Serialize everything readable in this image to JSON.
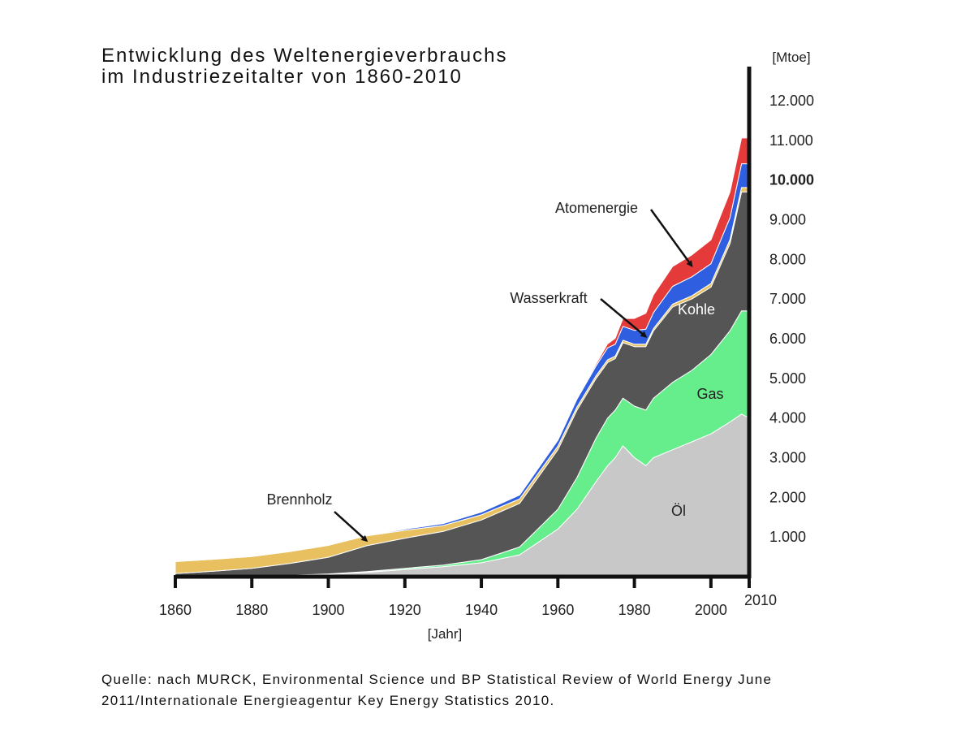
{
  "title": {
    "line1": "Entwicklung des Weltenergieverbrauchs",
    "line2": "im Industriezeitalter von 1860-2010"
  },
  "source": {
    "line1": "Quelle: nach MURCK, Environmental Science und BP Statistical Review of World Energy June",
    "line2": "2011/Internationale Energieagentur Key Energy Statistics 2010."
  },
  "chart_data": {
    "type": "area",
    "stacked": true,
    "xlabel": "[Jahr]",
    "ylabel": "[Mtoe]",
    "xlim": [
      1860,
      2010
    ],
    "ylim": [
      0,
      12900
    ],
    "x_ticks": [
      "1860",
      "1880",
      "1900",
      "1920",
      "1940",
      "1960",
      "1980",
      "2000",
      "2010"
    ],
    "y_ticks": [
      "1.000",
      "2.000",
      "3.000",
      "4.000",
      "5.000",
      "6.000",
      "7.000",
      "8.000",
      "9.000",
      "10.000",
      "11.000",
      "12.000"
    ],
    "y_tick_values": [
      1000,
      2000,
      3000,
      4000,
      5000,
      6000,
      7000,
      8000,
      9000,
      10000,
      11000,
      12000
    ],
    "x": [
      1860,
      1870,
      1880,
      1890,
      1900,
      1910,
      1920,
      1930,
      1940,
      1950,
      1960,
      1965,
      1970,
      1973,
      1975,
      1977,
      1980,
      1983,
      1985,
      1990,
      1995,
      2000,
      2005,
      2008,
      2010
    ],
    "series": [
      {
        "name": "Öl",
        "color": "#c8c8c8",
        "values": [
          0,
          0,
          10,
          30,
          60,
          110,
          180,
          250,
          350,
          550,
          1200,
          1700,
          2400,
          2800,
          3000,
          3300,
          3000,
          2800,
          3000,
          3200,
          3400,
          3600,
          3900,
          4100,
          4000
        ]
      },
      {
        "name": "Gas",
        "color": "#66ee8c",
        "values": [
          0,
          0,
          0,
          5,
          10,
          20,
          30,
          40,
          80,
          200,
          500,
          800,
          1100,
          1200,
          1200,
          1200,
          1300,
          1400,
          1500,
          1700,
          1800,
          2000,
          2300,
          2600,
          2700
        ]
      },
      {
        "name": "Kohle",
        "color": "#555555",
        "values": [
          80,
          140,
          200,
          300,
          420,
          650,
          760,
          850,
          1000,
          1100,
          1500,
          1700,
          1500,
          1400,
          1300,
          1400,
          1500,
          1600,
          1700,
          1900,
          1800,
          1700,
          2200,
          3000,
          3000
        ]
      },
      {
        "name": "Brennholz",
        "color": "#e8c060",
        "values": [
          300,
          300,
          300,
          300,
          300,
          250,
          200,
          150,
          130,
          110,
          90,
          80,
          70,
          70,
          60,
          60,
          60,
          60,
          60,
          70,
          80,
          90,
          100,
          110,
          110
        ]
      },
      {
        "name": "Wasserkraft",
        "color": "#2f5fe0",
        "values": [
          0,
          0,
          0,
          0,
          0,
          10,
          30,
          50,
          70,
          100,
          150,
          200,
          250,
          300,
          300,
          350,
          350,
          380,
          400,
          450,
          480,
          500,
          550,
          600,
          600
        ]
      },
      {
        "name": "Atomenergie",
        "color": "#e53a3a",
        "values": [
          0,
          0,
          0,
          0,
          0,
          0,
          0,
          0,
          0,
          0,
          10,
          20,
          50,
          100,
          150,
          200,
          300,
          400,
          450,
          500,
          550,
          600,
          650,
          650,
          650
        ]
      }
    ],
    "annotations": [
      {
        "text": "Atomenergie",
        "series": "Atomenergie"
      },
      {
        "text": "Wasserkraft",
        "series": "Wasserkraft"
      },
      {
        "text": "Kohle",
        "series": "Kohle"
      },
      {
        "text": "Gas",
        "series": "Gas"
      },
      {
        "text": "Öl",
        "series": "Öl"
      },
      {
        "text": "Brennholz",
        "series": "Brennholz"
      }
    ]
  }
}
